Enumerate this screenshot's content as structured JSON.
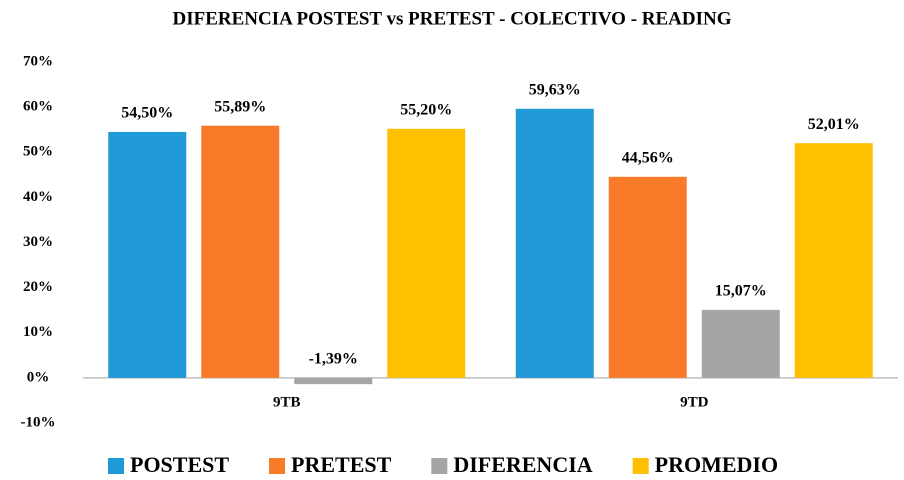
{
  "chart_data": {
    "type": "bar",
    "title": "DIFERENCIA POSTEST vs PRETEST - COLECTIVO - READING",
    "categories": [
      "9TB",
      "9TD"
    ],
    "series": [
      {
        "name": "POSTEST",
        "color": "#1f9ad6",
        "values": [
          54.5,
          59.63
        ],
        "value_labels": [
          "54,50%",
          "59,63%"
        ]
      },
      {
        "name": "PRETEST",
        "color": "#f97b2a",
        "values": [
          55.89,
          44.56
        ],
        "value_labels": [
          "55,89%",
          "44,56%"
        ]
      },
      {
        "name": "DIFERENCIA",
        "color": "#a5a5a5",
        "values": [
          -1.39,
          15.07
        ],
        "value_labels": [
          "-1,39%",
          "15,07%"
        ]
      },
      {
        "name": "PROMEDIO",
        "color": "#ffc000",
        "values": [
          55.2,
          52.01
        ],
        "value_labels": [
          "55,20%",
          "52,01%"
        ]
      }
    ],
    "ylim": [
      -10,
      70
    ],
    "yticks": [
      {
        "value": -10,
        "label": "-10%"
      },
      {
        "value": 0,
        "label": "0%"
      },
      {
        "value": 10,
        "label": "10%"
      },
      {
        "value": 20,
        "label": "20%"
      },
      {
        "value": 30,
        "label": "30%"
      },
      {
        "value": 40,
        "label": "40%"
      },
      {
        "value": 50,
        "label": "50%"
      },
      {
        "value": 60,
        "label": "60%"
      },
      {
        "value": 70,
        "label": "70%"
      }
    ],
    "grid": false,
    "legend": "bottom"
  }
}
